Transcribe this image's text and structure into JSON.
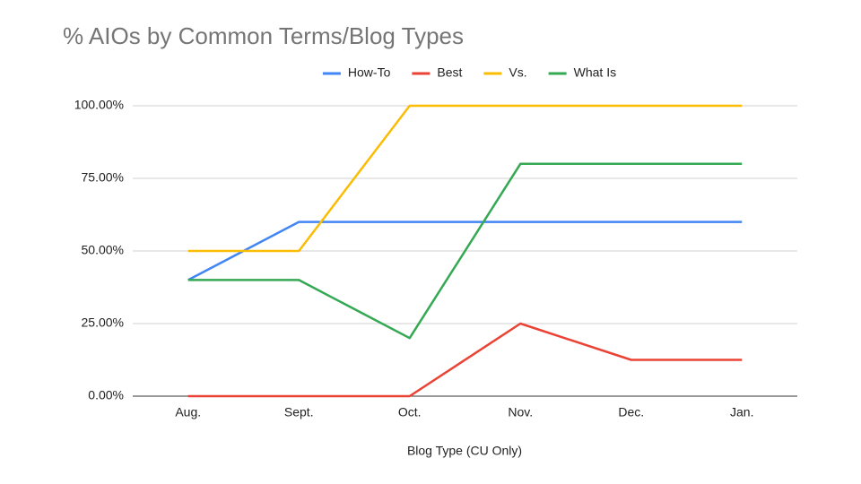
{
  "chart_data": {
    "type": "line",
    "title": "% AIOs by Common Terms/Blog Types",
    "x_label": "Blog Type (CU Only)",
    "categories": [
      "Aug.",
      "Sept.",
      "Oct.",
      "Nov.",
      "Dec.",
      "Jan."
    ],
    "series": [
      {
        "name": "How-To",
        "color": "#4285f4",
        "values": [
          40,
          60,
          60,
          60,
          60,
          60
        ]
      },
      {
        "name": "Best",
        "color": "#ea4335",
        "values": [
          0,
          0,
          0,
          25,
          12.5,
          12.5
        ]
      },
      {
        "name": "Vs.",
        "color": "#fbbc04",
        "values": [
          50,
          50,
          100,
          100,
          100,
          100
        ]
      },
      {
        "name": "What Is",
        "color": "#34a853",
        "values": [
          40,
          40,
          20,
          80,
          80,
          80
        ]
      }
    ],
    "ylim": [
      0,
      100
    ],
    "yticks": [
      {
        "value": 0,
        "label": "0.00%"
      },
      {
        "value": 25,
        "label": "25.00%"
      },
      {
        "value": 50,
        "label": "50.00%"
      },
      {
        "value": 75,
        "label": "75.00%"
      },
      {
        "value": 100,
        "label": "100.00%"
      }
    ],
    "grid": true,
    "legend": "top"
  }
}
